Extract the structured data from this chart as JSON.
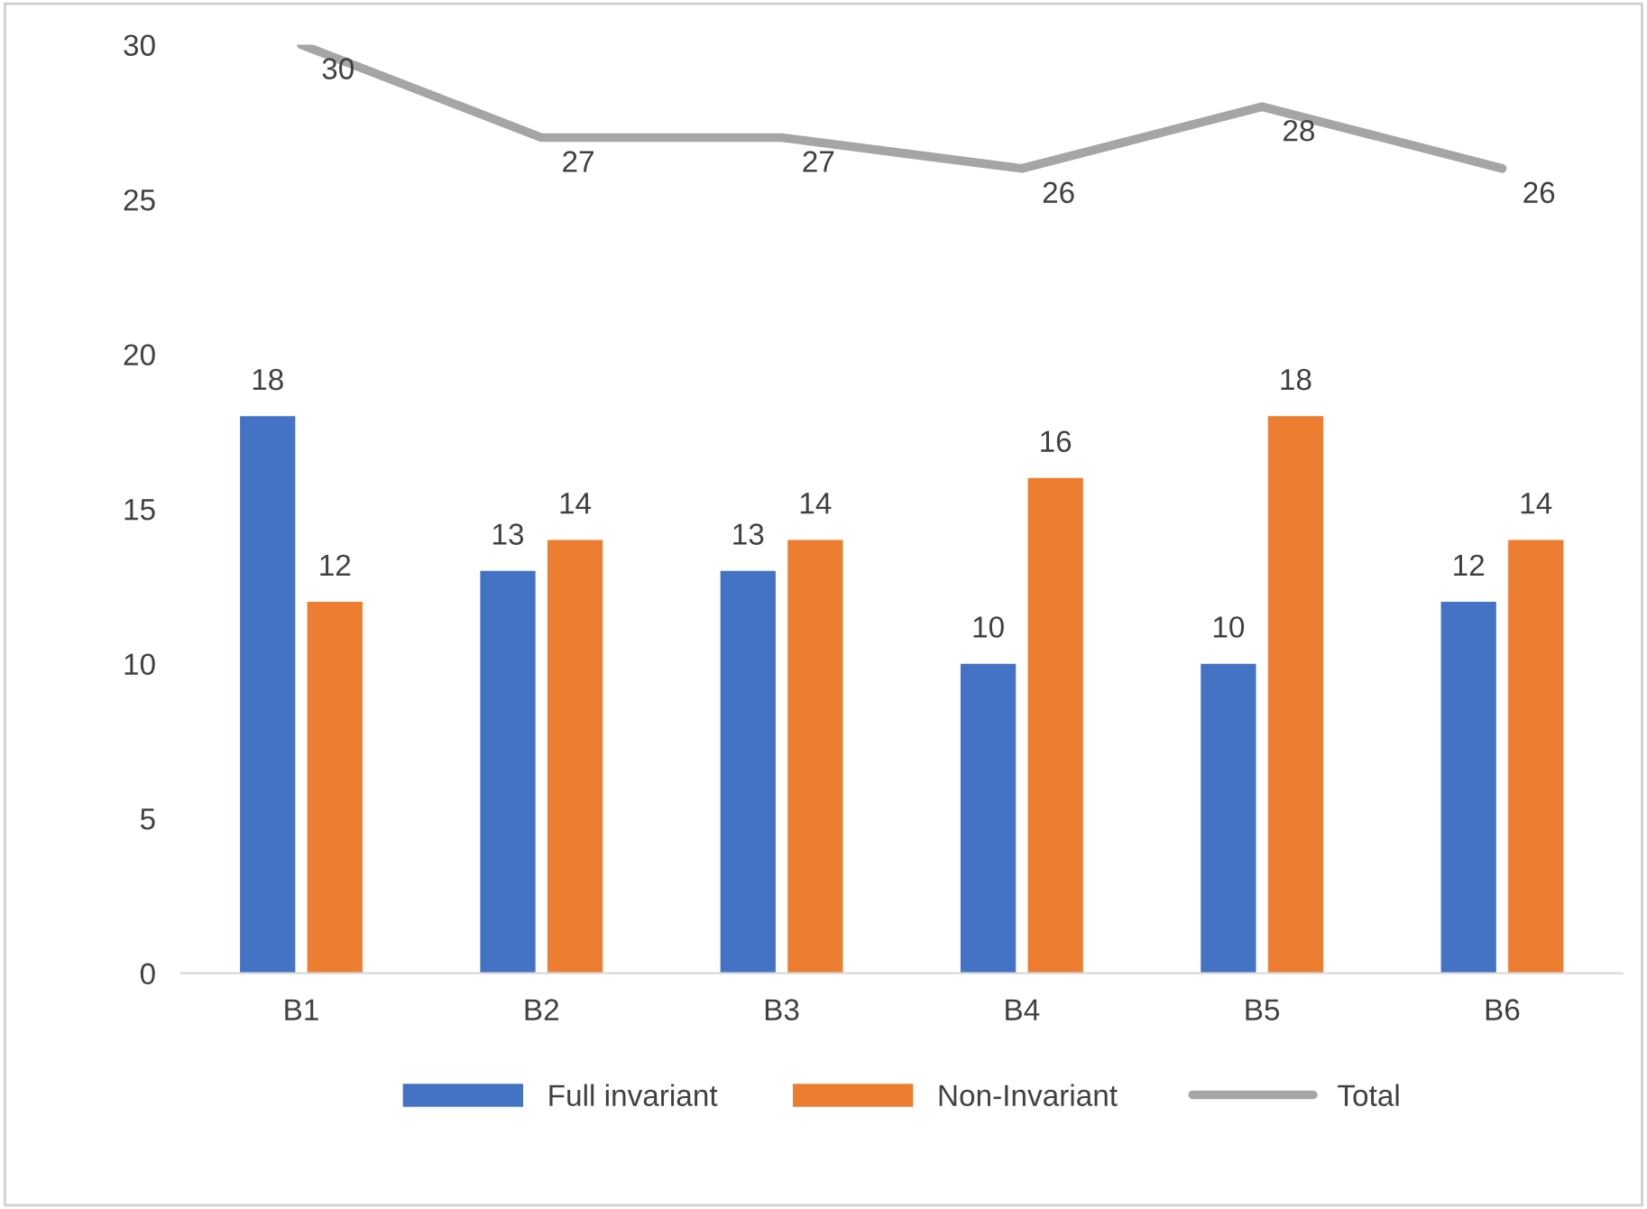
{
  "chart_data": {
    "type": "bar",
    "categories": [
      "B1",
      "B2",
      "B3",
      "B4",
      "B5",
      "B6"
    ],
    "series": [
      {
        "name": "Full invariant",
        "color": "#4472c4",
        "values": [
          18,
          13,
          13,
          10,
          10,
          12
        ]
      },
      {
        "name": "Non-Invariant",
        "color": "#ed7d31",
        "values": [
          12,
          14,
          14,
          16,
          18,
          14
        ]
      },
      {
        "name": "Total",
        "type": "line",
        "color": "#a5a5a5",
        "values": [
          30,
          27,
          27,
          26,
          28,
          26
        ]
      }
    ],
    "ylim": [
      0,
      30
    ],
    "yticks": [
      0,
      5,
      10,
      15,
      20,
      25,
      30
    ],
    "grid": false,
    "legend": "bottom",
    "data_labels": true,
    "marker": "none",
    "line_style": "solid"
  }
}
